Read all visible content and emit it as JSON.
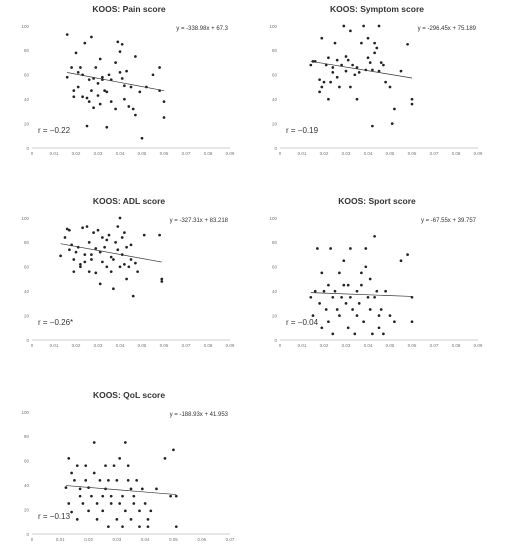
{
  "chart_data": [
    {
      "type": "scatter",
      "title": "KOOS: Pain score",
      "equation": "y = -338.98x + 67.3",
      "r_label": "r = −0.22",
      "xlim": [
        0,
        0.09
      ],
      "ylim": [
        0,
        100
      ],
      "x_ticks": [
        "0",
        "0.01",
        "0.02",
        "0.03",
        "0.04",
        "0.05",
        "0.06",
        "0.07",
        "0.08",
        "0.09"
      ],
      "x_tick_labels": [
        "0",
        "0.01",
        "0.02",
        "0.03",
        "0.04",
        "0.05",
        "0.06",
        "0.07",
        "0.08",
        "0.09"
      ],
      "y_tick_labels": [
        "0",
        "20",
        "40",
        "60",
        "80",
        "100"
      ],
      "trendline": {
        "slope": -338.98,
        "intercept": 67.3
      },
      "points": [
        [
          0.016,
          93
        ],
        [
          0.016,
          58
        ],
        [
          0.018,
          66
        ],
        [
          0.019,
          47
        ],
        [
          0.019,
          42
        ],
        [
          0.02,
          78
        ],
        [
          0.021,
          62
        ],
        [
          0.021,
          50
        ],
        [
          0.022,
          66
        ],
        [
          0.023,
          42
        ],
        [
          0.023,
          60
        ],
        [
          0.024,
          86
        ],
        [
          0.025,
          18
        ],
        [
          0.025,
          41
        ],
        [
          0.026,
          56
        ],
        [
          0.026,
          38
        ],
        [
          0.027,
          91
        ],
        [
          0.027,
          47
        ],
        [
          0.028,
          57
        ],
        [
          0.028,
          33
        ],
        [
          0.029,
          66
        ],
        [
          0.03,
          53
        ],
        [
          0.03,
          43
        ],
        [
          0.031,
          73
        ],
        [
          0.031,
          36
        ],
        [
          0.032,
          58
        ],
        [
          0.032,
          56
        ],
        [
          0.033,
          47
        ],
        [
          0.034,
          46
        ],
        [
          0.034,
          17
        ],
        [
          0.035,
          60
        ],
        [
          0.036,
          56
        ],
        [
          0.036,
          38
        ],
        [
          0.038,
          32
        ],
        [
          0.038,
          70
        ],
        [
          0.039,
          87
        ],
        [
          0.04,
          62
        ],
        [
          0.04,
          79
        ],
        [
          0.041,
          85
        ],
        [
          0.041,
          57
        ],
        [
          0.042,
          51
        ],
        [
          0.042,
          40
        ],
        [
          0.043,
          63
        ],
        [
          0.044,
          34
        ],
        [
          0.045,
          50
        ],
        [
          0.046,
          32
        ],
        [
          0.047,
          75
        ],
        [
          0.047,
          27
        ],
        [
          0.049,
          46
        ],
        [
          0.05,
          8
        ],
        [
          0.052,
          50
        ],
        [
          0.055,
          60
        ],
        [
          0.058,
          47
        ],
        [
          0.058,
          66
        ],
        [
          0.06,
          38
        ],
        [
          0.06,
          25
        ]
      ]
    },
    {
      "type": "scatter",
      "title": "KOOS: Symptom score",
      "equation": "y = -296.45x + 75.189",
      "r_label": "r = −0.19",
      "xlim": [
        0,
        0.09
      ],
      "ylim": [
        0,
        100
      ],
      "x_tick_labels": [
        "0",
        "0.01",
        "0.02",
        "0.03",
        "0.04",
        "0.05",
        "0.06",
        "0.07",
        "0.08",
        "0.09"
      ],
      "y_tick_labels": [
        "0",
        "20",
        "40",
        "60",
        "80",
        "100"
      ],
      "trendline": {
        "slope": -296.45,
        "intercept": 75.189
      },
      "points": [
        [
          0.014,
          68
        ],
        [
          0.015,
          71
        ],
        [
          0.016,
          71
        ],
        [
          0.018,
          46
        ],
        [
          0.018,
          56
        ],
        [
          0.019,
          50
        ],
        [
          0.019,
          90
        ],
        [
          0.02,
          54
        ],
        [
          0.021,
          68
        ],
        [
          0.022,
          74
        ],
        [
          0.022,
          40
        ],
        [
          0.023,
          54
        ],
        [
          0.024,
          66
        ],
        [
          0.024,
          62
        ],
        [
          0.025,
          86
        ],
        [
          0.026,
          72
        ],
        [
          0.026,
          58
        ],
        [
          0.027,
          50
        ],
        [
          0.028,
          68
        ],
        [
          0.029,
          100
        ],
        [
          0.03,
          75
        ],
        [
          0.03,
          63
        ],
        [
          0.031,
          72
        ],
        [
          0.032,
          96
        ],
        [
          0.032,
          50
        ],
        [
          0.033,
          68
        ],
        [
          0.034,
          60
        ],
        [
          0.035,
          40
        ],
        [
          0.035,
          66
        ],
        [
          0.036,
          62
        ],
        [
          0.037,
          86
        ],
        [
          0.038,
          100
        ],
        [
          0.039,
          64
        ],
        [
          0.04,
          90
        ],
        [
          0.04,
          74
        ],
        [
          0.041,
          70
        ],
        [
          0.042,
          64
        ],
        [
          0.042,
          18
        ],
        [
          0.043,
          86
        ],
        [
          0.043,
          78
        ],
        [
          0.044,
          82
        ],
        [
          0.045,
          100
        ],
        [
          0.045,
          63
        ],
        [
          0.046,
          70
        ],
        [
          0.047,
          68
        ],
        [
          0.048,
          54
        ],
        [
          0.05,
          50
        ],
        [
          0.051,
          20
        ],
        [
          0.052,
          32
        ],
        [
          0.055,
          63
        ],
        [
          0.058,
          85
        ],
        [
          0.06,
          40
        ],
        [
          0.06,
          36
        ]
      ]
    },
    {
      "type": "scatter",
      "title": "KOOS: ADL score",
      "equation": "y = -327.31x + 83.218",
      "r_label": "r = −0.26*",
      "xlim": [
        0,
        0.09
      ],
      "ylim": [
        0,
        100
      ],
      "x_tick_labels": [
        "0",
        "0.01",
        "0.02",
        "0.03",
        "0.04",
        "0.05",
        "0.06",
        "0.07",
        "0.08",
        "0.09"
      ],
      "y_tick_labels": [
        "0",
        "20",
        "40",
        "60",
        "80",
        "100"
      ],
      "trendline": {
        "slope": -327.31,
        "intercept": 83.218
      },
      "points": [
        [
          0.013,
          69
        ],
        [
          0.015,
          84
        ],
        [
          0.016,
          91
        ],
        [
          0.017,
          90
        ],
        [
          0.017,
          74
        ],
        [
          0.018,
          78
        ],
        [
          0.019,
          66
        ],
        [
          0.019,
          56
        ],
        [
          0.02,
          72
        ],
        [
          0.021,
          76
        ],
        [
          0.022,
          60
        ],
        [
          0.022,
          62
        ],
        [
          0.023,
          92
        ],
        [
          0.024,
          70
        ],
        [
          0.024,
          64
        ],
        [
          0.025,
          93
        ],
        [
          0.026,
          80
        ],
        [
          0.026,
          56
        ],
        [
          0.027,
          70
        ],
        [
          0.027,
          66
        ],
        [
          0.028,
          88
        ],
        [
          0.029,
          75
        ],
        [
          0.029,
          55
        ],
        [
          0.03,
          90
        ],
        [
          0.031,
          46
        ],
        [
          0.031,
          72
        ],
        [
          0.032,
          84
        ],
        [
          0.032,
          64
        ],
        [
          0.033,
          76
        ],
        [
          0.034,
          82
        ],
        [
          0.034,
          60
        ],
        [
          0.035,
          86
        ],
        [
          0.036,
          68
        ],
        [
          0.036,
          56
        ],
        [
          0.037,
          66
        ],
        [
          0.037,
          42
        ],
        [
          0.038,
          80
        ],
        [
          0.039,
          93
        ],
        [
          0.039,
          74
        ],
        [
          0.04,
          60
        ],
        [
          0.04,
          100
        ],
        [
          0.041,
          84
        ],
        [
          0.041,
          70
        ],
        [
          0.042,
          62
        ],
        [
          0.042,
          88
        ],
        [
          0.043,
          76
        ],
        [
          0.043,
          50
        ],
        [
          0.044,
          60
        ],
        [
          0.045,
          66
        ],
        [
          0.045,
          78
        ],
        [
          0.046,
          36
        ],
        [
          0.047,
          63
        ],
        [
          0.048,
          56
        ],
        [
          0.051,
          86
        ],
        [
          0.058,
          86
        ],
        [
          0.059,
          50
        ],
        [
          0.059,
          48
        ]
      ]
    },
    {
      "type": "scatter",
      "title": "KOOS: Sport score",
      "equation": "y = -67.55x + 39.757",
      "r_label": "r = −0.04",
      "xlim": [
        0,
        0.09
      ],
      "ylim": [
        0,
        100
      ],
      "x_tick_labels": [
        "0",
        "0.01",
        "0.02",
        "0.03",
        "0.04",
        "0.05",
        "0.06",
        "0.07",
        "0.08",
        "0.09"
      ],
      "y_tick_labels": [
        "0",
        "20",
        "40",
        "60",
        "80",
        "100"
      ],
      "trendline": {
        "slope": -67.55,
        "intercept": 39.757
      },
      "points": [
        [
          0.014,
          35
        ],
        [
          0.015,
          20
        ],
        [
          0.016,
          40
        ],
        [
          0.017,
          75
        ],
        [
          0.018,
          30
        ],
        [
          0.019,
          10
        ],
        [
          0.019,
          55
        ],
        [
          0.02,
          40
        ],
        [
          0.021,
          25
        ],
        [
          0.022,
          45
        ],
        [
          0.022,
          15
        ],
        [
          0.023,
          75
        ],
        [
          0.024,
          35
        ],
        [
          0.024,
          5
        ],
        [
          0.025,
          40
        ],
        [
          0.026,
          25
        ],
        [
          0.027,
          55
        ],
        [
          0.027,
          20
        ],
        [
          0.028,
          35
        ],
        [
          0.029,
          65
        ],
        [
          0.029,
          45
        ],
        [
          0.03,
          30
        ],
        [
          0.031,
          10
        ],
        [
          0.031,
          45
        ],
        [
          0.032,
          75
        ],
        [
          0.032,
          35
        ],
        [
          0.033,
          25
        ],
        [
          0.034,
          5
        ],
        [
          0.035,
          40
        ],
        [
          0.035,
          20
        ],
        [
          0.036,
          30
        ],
        [
          0.037,
          55
        ],
        [
          0.037,
          45
        ],
        [
          0.038,
          15
        ],
        [
          0.039,
          75
        ],
        [
          0.039,
          60
        ],
        [
          0.04,
          35
        ],
        [
          0.041,
          25
        ],
        [
          0.041,
          50
        ],
        [
          0.042,
          5
        ],
        [
          0.043,
          85
        ],
        [
          0.043,
          35
        ],
        [
          0.044,
          40
        ],
        [
          0.045,
          20
        ],
        [
          0.045,
          10
        ],
        [
          0.046,
          25
        ],
        [
          0.047,
          5
        ],
        [
          0.048,
          40
        ],
        [
          0.05,
          20
        ],
        [
          0.052,
          15
        ],
        [
          0.055,
          65
        ],
        [
          0.058,
          70
        ],
        [
          0.06,
          35
        ],
        [
          0.06,
          15
        ]
      ]
    },
    {
      "type": "scatter",
      "title": "KOOS: QoL score",
      "equation": "y = -188.93x + 41.953",
      "r_label": "r = −0.13",
      "xlim": [
        0,
        0.07
      ],
      "ylim": [
        0,
        100
      ],
      "x_tick_labels": [
        "0",
        "0.01",
        "0.02",
        "0.03",
        "0.04",
        "0.05",
        "0.06",
        "0.07"
      ],
      "y_tick_labels": [
        "0",
        "20",
        "40",
        "60",
        "80",
        "100"
      ],
      "trendline": {
        "slope": -188.93,
        "intercept": 41.953
      },
      "points": [
        [
          0.012,
          38
        ],
        [
          0.013,
          62
        ],
        [
          0.013,
          25
        ],
        [
          0.014,
          18
        ],
        [
          0.014,
          50
        ],
        [
          0.015,
          44
        ],
        [
          0.016,
          12
        ],
        [
          0.016,
          56
        ],
        [
          0.017,
          31
        ],
        [
          0.017,
          37
        ],
        [
          0.018,
          25
        ],
        [
          0.019,
          44
        ],
        [
          0.019,
          56
        ],
        [
          0.02,
          38
        ],
        [
          0.02,
          19
        ],
        [
          0.021,
          31
        ],
        [
          0.022,
          75
        ],
        [
          0.022,
          50
        ],
        [
          0.023,
          25
        ],
        [
          0.023,
          12
        ],
        [
          0.024,
          44
        ],
        [
          0.025,
          31
        ],
        [
          0.025,
          19
        ],
        [
          0.026,
          56
        ],
        [
          0.026,
          37
        ],
        [
          0.027,
          6
        ],
        [
          0.027,
          44
        ],
        [
          0.028,
          25
        ],
        [
          0.028,
          31
        ],
        [
          0.029,
          56
        ],
        [
          0.03,
          12
        ],
        [
          0.03,
          44
        ],
        [
          0.031,
          62
        ],
        [
          0.031,
          25
        ],
        [
          0.032,
          31
        ],
        [
          0.032,
          6
        ],
        [
          0.033,
          75
        ],
        [
          0.033,
          19
        ],
        [
          0.034,
          44
        ],
        [
          0.034,
          56
        ],
        [
          0.035,
          37
        ],
        [
          0.035,
          12
        ],
        [
          0.036,
          31
        ],
        [
          0.036,
          25
        ],
        [
          0.037,
          44
        ],
        [
          0.038,
          19
        ],
        [
          0.038,
          6
        ],
        [
          0.039,
          37
        ],
        [
          0.04,
          25
        ],
        [
          0.041,
          12
        ],
        [
          0.041,
          6
        ],
        [
          0.042,
          19
        ],
        [
          0.044,
          37
        ],
        [
          0.047,
          62
        ],
        [
          0.049,
          31
        ],
        [
          0.05,
          69
        ],
        [
          0.051,
          6
        ],
        [
          0.051,
          31
        ]
      ]
    }
  ]
}
